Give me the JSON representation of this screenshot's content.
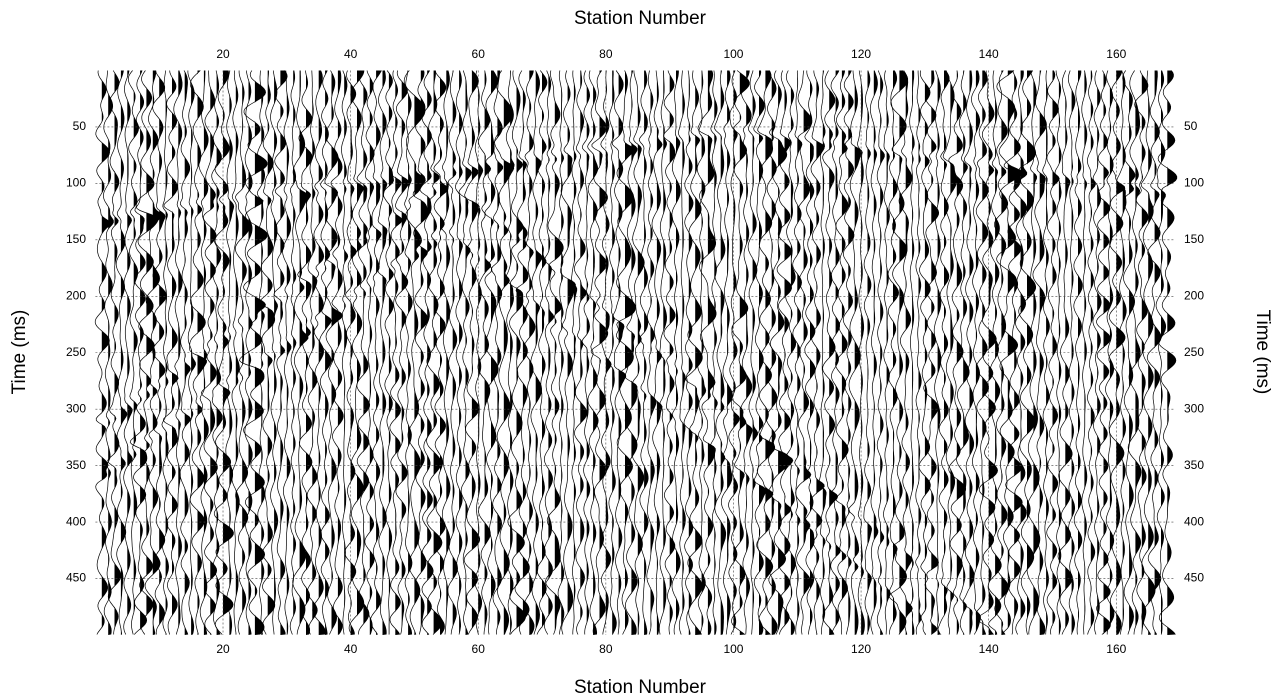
{
  "chart_data": {
    "type": "seismic",
    "x_label": "Station Number",
    "y_label": "Time (ms)",
    "xlim": [
      0,
      169.2
    ],
    "ylim": [
      0,
      500
    ],
    "xticks": [
      20,
      40,
      60,
      80,
      100,
      120,
      140,
      160
    ],
    "yticks": [
      50,
      100,
      150,
      200,
      250,
      300,
      350,
      400,
      450
    ],
    "trace_count": 168,
    "grid": true,
    "color": "#000000"
  }
}
